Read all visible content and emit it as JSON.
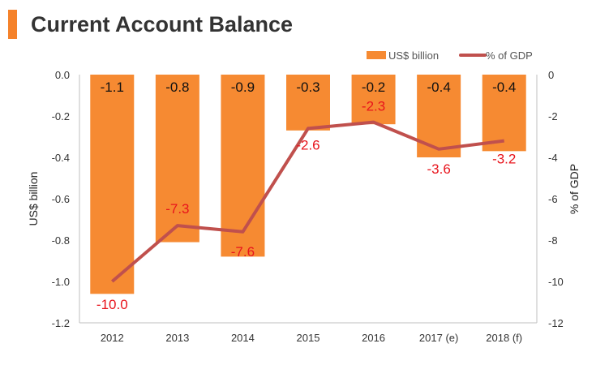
{
  "header": {
    "title": "Current Account Balance"
  },
  "colors": {
    "accent": "#f5822a",
    "bar": "#f68a32",
    "line": "#c0504d",
    "line_label": "#e8141c"
  },
  "chart_data": {
    "type": "bar",
    "categories": [
      "2012",
      "2013",
      "2014",
      "2015",
      "2016",
      "2017 (e)",
      "2018 (f)"
    ],
    "series": [
      {
        "name": "US$ billion",
        "type": "bar",
        "axis": "left",
        "values": [
          -1.06,
          -0.81,
          -0.88,
          -0.27,
          -0.24,
          -0.4,
          -0.37
        ],
        "labels": [
          "-1.1",
          "-0.8",
          "-0.9",
          "-0.3",
          "-0.2",
          "-0.4",
          "-0.4"
        ]
      },
      {
        "name": "% of GDP",
        "type": "line",
        "axis": "right",
        "values": [
          -10.0,
          -7.3,
          -7.6,
          -2.6,
          -2.3,
          -3.6,
          -3.2
        ],
        "labels": [
          "-10.0",
          "-7.3",
          "-7.6",
          "-2.6",
          "-2.3",
          "-3.6",
          "-3.2"
        ]
      }
    ],
    "ylabel": "US$ billion",
    "ylim": [
      -1.2,
      0.0
    ],
    "yticks": [
      "0.0",
      "-0.2",
      "-0.4",
      "-0.6",
      "-0.8",
      "-1.0",
      "-1.2"
    ],
    "y2label": "% of GDP",
    "y2lim": [
      -12,
      0
    ],
    "y2ticks": [
      "0",
      "-2",
      "-4",
      "-6",
      "-8",
      "-10",
      "-12"
    ],
    "legend": "top-right",
    "grid": false
  }
}
